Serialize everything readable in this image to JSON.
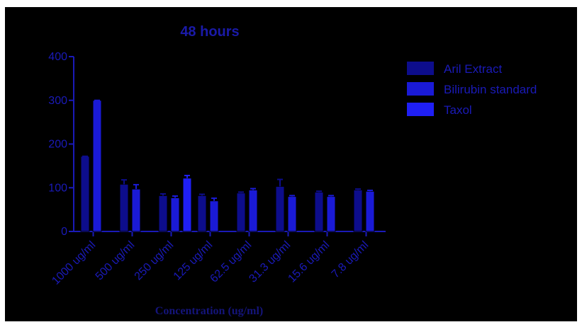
{
  "chart_data": {
    "type": "bar",
    "title": "48 hours",
    "xlabel": "Concentration (ug/ml)",
    "ylabel": "",
    "ylim": [
      0,
      400
    ],
    "yticks": [
      0,
      100,
      200,
      300,
      400
    ],
    "categories": [
      "1000 ug/ml",
      "500 ug/ml",
      "250 ug/ml",
      "125 ug/ml",
      "62.5 ug/ml",
      "31.3 ug/ml",
      "15.6 ug/ml",
      "7.8 ug/ml"
    ],
    "series": [
      {
        "name": "Aril Extract",
        "color": "#0d0d8c",
        "values": [
          172,
          108,
          82,
          82,
          88,
          103,
          90,
          95
        ],
        "errors": [
          0,
          10,
          4,
          3,
          2,
          16,
          2,
          2
        ]
      },
      {
        "name": "Bilirubin standard",
        "color": "#1a1ad6",
        "values": [
          300,
          97,
          77,
          70,
          95,
          80,
          80,
          92
        ],
        "errors": [
          0,
          10,
          4,
          6,
          3,
          2,
          2,
          2
        ]
      },
      {
        "name": "Taxol",
        "color": "#1f1ff5",
        "values": [
          null,
          null,
          122,
          null,
          null,
          null,
          null,
          null
        ],
        "errors": [
          null,
          null,
          6,
          null,
          null,
          null,
          null,
          null
        ]
      }
    ],
    "legend_position": "right",
    "grid": false
  },
  "style": {
    "background": "#000000",
    "axis_color": "#1a1ab8",
    "text_color": "#1a1ab8",
    "title_color": "#1a1aa8",
    "xlabel_color": "#14147a"
  }
}
